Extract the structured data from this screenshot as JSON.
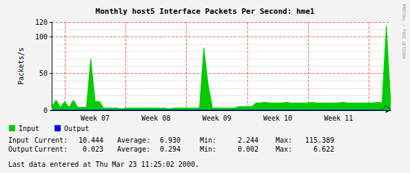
{
  "chart_data": {
    "type": "line",
    "title": "Monthly host5 Interface Packets Per Second: hme1",
    "y_label": "Packets/s",
    "categories": [
      null,
      null,
      null,
      null,
      null,
      null,
      null,
      null,
      null,
      null,
      "Week 07",
      null,
      null,
      null,
      null,
      null,
      null,
      null,
      null,
      null,
      null,
      null,
      null,
      null,
      "Week 08",
      null,
      null,
      null,
      null,
      null,
      null,
      null,
      null,
      null,
      null,
      null,
      null,
      null,
      "Week 09",
      null,
      null,
      null,
      null,
      null,
      null,
      null,
      null,
      null,
      null,
      null,
      null,
      null,
      "Week 10",
      null,
      null,
      null,
      null,
      null,
      null,
      null,
      null,
      null,
      null,
      null,
      null,
      null,
      "Week 11",
      null,
      null,
      null,
      null,
      null,
      null,
      null,
      null,
      null,
      null,
      null,
      null
    ],
    "series": [
      {
        "name": "Input",
        "type": "area",
        "color": "#00cc00",
        "values": [
          4,
          14,
          4,
          12,
          4,
          14,
          4,
          4,
          4,
          70,
          12,
          12,
          3,
          3,
          3,
          3,
          2,
          3,
          3,
          3,
          3,
          3,
          3,
          3,
          3,
          3,
          3,
          2,
          3,
          3,
          3,
          3,
          3,
          3,
          3,
          85,
          35,
          3,
          3,
          3,
          3,
          3,
          3,
          5,
          5,
          5,
          5,
          10,
          10,
          11,
          10,
          10,
          10,
          10,
          11,
          10,
          10,
          10,
          10,
          10,
          11,
          10,
          10,
          10,
          10,
          10,
          10,
          11,
          10,
          10,
          10,
          10,
          10,
          10,
          10,
          11,
          10,
          115,
          10
        ]
      },
      {
        "name": "Output",
        "type": "line",
        "color": "#0000ff",
        "values": [
          0.3,
          0.3,
          0.3,
          0.3,
          0.3,
          0.3,
          0.3,
          0.3,
          0.3,
          0.3,
          0.3,
          0.3,
          0.3,
          0.3,
          0.3,
          0.3,
          0.3,
          0.3,
          0.3,
          0.3,
          0.3,
          0.3,
          0.3,
          0.3,
          0.3,
          0.3,
          0.3,
          0.3,
          0.3,
          0.3,
          0.3,
          0.3,
          0.3,
          0.3,
          0.3,
          0.3,
          0.3,
          0.3,
          0.3,
          0.3,
          0.3,
          0.3,
          0.3,
          0.3,
          0.3,
          0.3,
          0.3,
          0.3,
          0.3,
          0.3,
          0.3,
          0.3,
          0.3,
          0.3,
          0.3,
          0.3,
          0.3,
          0.3,
          0.3,
          0.3,
          0.3,
          0.3,
          0.3,
          0.3,
          0.3,
          0.3,
          0.3,
          0.3,
          0.3,
          0.3,
          0.3,
          0.3,
          0.3,
          0.3,
          0.3,
          0.3,
          0.3,
          6.6,
          0.02
        ]
      }
    ],
    "ylim": [
      0,
      120
    ],
    "yticks": [
      0,
      50,
      100
    ],
    "grid": true,
    "legend": "bottom-left",
    "stats": {
      "columns": [
        "Current:",
        "Average:",
        "Min:",
        "Max:"
      ],
      "rows": [
        {
          "name": "Input",
          "values": [
            "10.444",
            "6.930",
            "2.244",
            "115.389"
          ]
        },
        {
          "name": "Output",
          "values": [
            "0.023",
            "0.294",
            "0.002",
            "6.622"
          ]
        }
      ]
    },
    "footer": "Last data entered at Thu Mar 23 11:25:02 2000.",
    "watermark": "RRDTOOL / TOBI OETIKER"
  }
}
